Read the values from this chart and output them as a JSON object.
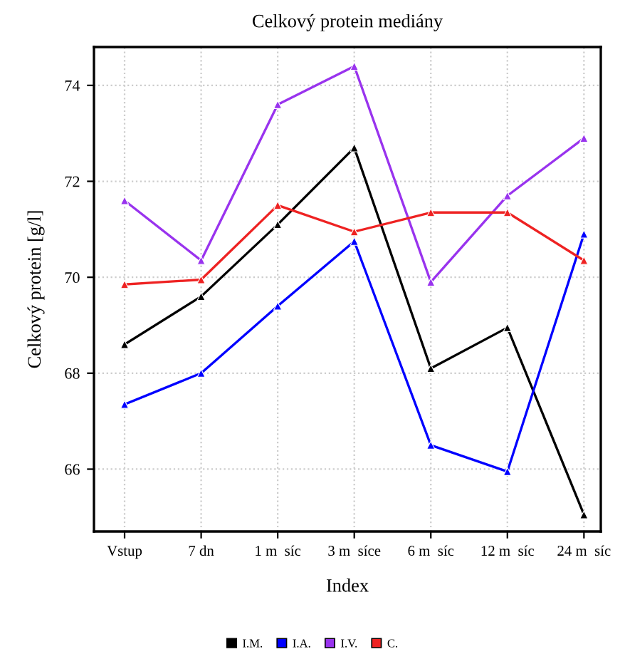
{
  "chart_data": {
    "type": "line",
    "title": "Celkový protein mediány",
    "xlabel": "Index",
    "ylabel": "Celkový protein [g/l]",
    "categories": [
      "Vstup",
      "7 dn",
      "1 m  síc",
      "3 m  síce",
      "6 m  síc",
      "12 m  síc",
      "24 m  síc"
    ],
    "series": [
      {
        "name": "I.M.",
        "color": "#000000",
        "values": [
          68.6,
          69.6,
          71.1,
          72.7,
          68.1,
          68.95,
          65.05
        ]
      },
      {
        "name": "I.A.",
        "color": "#0000ff",
        "values": [
          67.35,
          68.0,
          69.4,
          70.75,
          66.5,
          65.95,
          70.9
        ]
      },
      {
        "name": "I.V.",
        "color": "#9933ee",
        "values": [
          71.6,
          70.35,
          73.6,
          74.4,
          69.9,
          71.7,
          72.9
        ]
      },
      {
        "name": "C.",
        "color": "#ee2222",
        "values": [
          69.85,
          69.95,
          71.5,
          70.95,
          71.35,
          71.35,
          70.35
        ]
      }
    ],
    "ylim": [
      64.7,
      74.8
    ],
    "yticks": [
      66,
      68,
      70,
      72,
      74
    ],
    "grid": true,
    "legend": "bottom",
    "marker": "triangle",
    "line_style": "solid"
  }
}
